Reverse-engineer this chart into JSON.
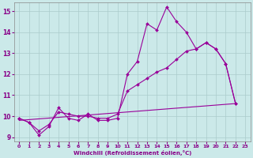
{
  "title": "",
  "xlabel": "Windchill (Refroidissement éolien,°C)",
  "ylabel": "",
  "xlim": [
    -0.5,
    23.5
  ],
  "ylim": [
    8.8,
    15.4
  ],
  "yticks": [
    9,
    10,
    11,
    12,
    13,
    14,
    15
  ],
  "xticks": [
    0,
    1,
    2,
    3,
    4,
    5,
    6,
    7,
    8,
    9,
    10,
    11,
    12,
    13,
    14,
    15,
    16,
    17,
    18,
    19,
    20,
    21,
    22,
    23
  ],
  "bg_color": "#cbe9e9",
  "line_color": "#990099",
  "grid_color": "#aacccc",
  "lines": [
    {
      "x": [
        0,
        1,
        2,
        3,
        4,
        5,
        6,
        7,
        8,
        9,
        10,
        11,
        12,
        13,
        14,
        15,
        16,
        17,
        18,
        19,
        20,
        21,
        22
      ],
      "y": [
        9.9,
        9.7,
        9.1,
        9.5,
        10.4,
        9.9,
        9.8,
        10.1,
        9.8,
        9.8,
        9.9,
        12.0,
        12.6,
        14.4,
        14.1,
        15.2,
        14.5,
        14.0,
        13.2,
        13.5,
        13.2,
        12.5,
        10.6
      ]
    },
    {
      "x": [
        0,
        1,
        2,
        3,
        4,
        5,
        6,
        7,
        8,
        9,
        10,
        11,
        12,
        13,
        14,
        15,
        16,
        17,
        18,
        19,
        20,
        21,
        22
      ],
      "y": [
        9.9,
        9.7,
        9.3,
        9.6,
        10.2,
        10.1,
        10.0,
        10.0,
        9.9,
        9.9,
        10.1,
        11.2,
        11.5,
        11.8,
        12.1,
        12.3,
        12.7,
        13.1,
        13.2,
        13.5,
        13.2,
        12.5,
        10.6
      ]
    },
    {
      "x": [
        0,
        22
      ],
      "y": [
        9.8,
        10.6
      ]
    }
  ]
}
